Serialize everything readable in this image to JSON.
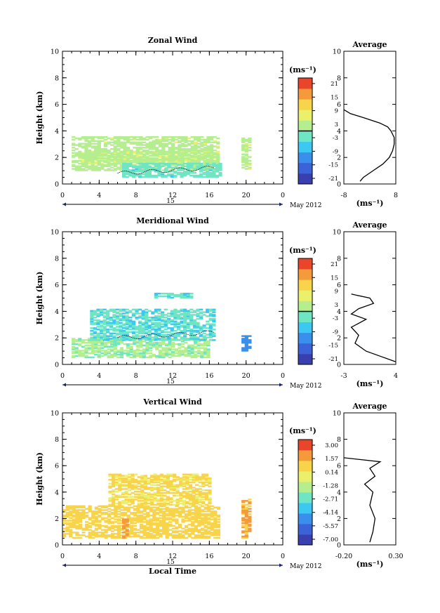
{
  "chart_data": [
    {
      "type": "heatmap",
      "title": "Zonal Wind",
      "ylabel": "Height (km)",
      "xlabel": "",
      "xlim": [
        0,
        24
      ],
      "ylim": [
        0,
        10
      ],
      "x_ticks": [
        "0",
        "4",
        "8",
        "12",
        "16",
        "20",
        "0"
      ],
      "y_ticks": [
        "0",
        "2",
        "4",
        "6",
        "8",
        "10"
      ],
      "date_axis": {
        "day_label": "15",
        "month_label": "May 2012"
      },
      "colorbar": {
        "unit_label": "(ms⁻¹)",
        "ticks": [
          "21",
          "15",
          "9",
          "3",
          "-3",
          "-9",
          "-15",
          "-21"
        ],
        "range": [
          -24,
          24
        ]
      },
      "approx_field": [
        {
          "t": [
            2,
            17
          ],
          "h": [
            1.5,
            2.5
          ],
          "value": 6
        },
        {
          "t": [
            1,
            17
          ],
          "h": [
            1.0,
            3.6
          ],
          "value": 3
        },
        {
          "t": [
            6.5,
            17
          ],
          "h": [
            0.5,
            1.6
          ],
          "value": -3
        },
        {
          "t": [
            19.5,
            20.5
          ],
          "h": [
            1.0,
            3.5
          ],
          "value": 3
        }
      ],
      "average_profile": {
        "title": "Average",
        "xlabel": "(ms⁻¹)",
        "x_ticks": [
          "-8",
          "8"
        ],
        "xlim": [
          -8,
          8
        ],
        "height": [
          0.2,
          0.5,
          1.0,
          1.5,
          2.0,
          2.5,
          3.0,
          3.5,
          4.0,
          4.3,
          4.6,
          5.0,
          5.3,
          5.6
        ],
        "value": [
          -3,
          -2,
          1,
          4,
          6,
          7,
          7.5,
          7.5,
          6.5,
          5.5,
          3,
          -2,
          -6,
          -8
        ]
      }
    },
    {
      "type": "heatmap",
      "title": "Meridional Wind",
      "ylabel": "Height (km)",
      "xlabel": "",
      "xlim": [
        0,
        24
      ],
      "ylim": [
        0,
        10
      ],
      "x_ticks": [
        "0",
        "4",
        "8",
        "12",
        "16",
        "20",
        "0"
      ],
      "y_ticks": [
        "0",
        "2",
        "4",
        "6",
        "8",
        "10"
      ],
      "date_axis": {
        "day_label": "15",
        "month_label": "May 2012"
      },
      "colorbar": {
        "unit_label": "(ms⁻¹)",
        "ticks": [
          "21",
          "15",
          "9",
          "3",
          "-3",
          "-9",
          "-15",
          "-21"
        ],
        "range": [
          -24,
          24
        ]
      },
      "approx_field": [
        {
          "t": [
            1,
            16
          ],
          "h": [
            0.5,
            2.0
          ],
          "value": 1
        },
        {
          "t": [
            3,
            16.5
          ],
          "h": [
            1.8,
            4.2
          ],
          "value": -4
        },
        {
          "t": [
            10,
            14
          ],
          "h": [
            5.0,
            5.3
          ],
          "value": -4
        },
        {
          "t": [
            19.5,
            20.5
          ],
          "h": [
            1.0,
            2.2
          ],
          "value": -12
        }
      ],
      "average_profile": {
        "title": "Average",
        "xlabel": "(ms⁻¹)",
        "x_ticks": [
          "-3",
          "4"
        ],
        "xlim": [
          -3,
          4
        ],
        "height": [
          0.2,
          0.6,
          1.0,
          1.6,
          2.2,
          2.8,
          3.4,
          3.8,
          4.2,
          4.6,
          5.0,
          5.3
        ],
        "value": [
          4,
          2,
          0,
          -1.5,
          -1,
          -2,
          0,
          -2,
          -1,
          1,
          0.5,
          -2
        ]
      }
    },
    {
      "type": "heatmap",
      "title": "Vertical Wind",
      "ylabel": "Height (km)",
      "xlabel": "Local Time",
      "xlim": [
        0,
        24
      ],
      "ylim": [
        0,
        10
      ],
      "x_ticks": [
        "0",
        "4",
        "8",
        "12",
        "16",
        "20",
        "0"
      ],
      "y_ticks": [
        "0",
        "2",
        "4",
        "6",
        "8",
        "10"
      ],
      "date_axis": {
        "day_label": "15",
        "month_label": "May 2012"
      },
      "colorbar": {
        "unit_label": "(ms⁻¹)",
        "ticks": [
          "3.00",
          "1.57",
          "0.14",
          "-1.28",
          "-2.71",
          "-4.14",
          "-5.57",
          "-7.00"
        ],
        "range": [
          -7.7,
          3.7
        ]
      },
      "approx_field": [
        {
          "t": [
            0,
            17
          ],
          "h": [
            0.5,
            3.0
          ],
          "value": 0.8
        },
        {
          "t": [
            5,
            16
          ],
          "h": [
            3.0,
            5.3
          ],
          "value": 0.5
        },
        {
          "t": [
            6.5,
            7
          ],
          "h": [
            0.5,
            2.0
          ],
          "value": 2.0
        },
        {
          "t": [
            19.5,
            20.5
          ],
          "h": [
            0.5,
            3.5
          ],
          "value": 1.6
        }
      ],
      "average_profile": {
        "title": "Average",
        "xlabel": "(ms⁻¹)",
        "x_ticks": [
          "-0.20",
          "0.30"
        ],
        "xlim": [
          -0.2,
          0.3
        ],
        "height": [
          0.2,
          1.0,
          2.0,
          3.0,
          4.0,
          4.6,
          5.2,
          5.8,
          6.3,
          6.6
        ],
        "value": [
          0.05,
          0.08,
          0.1,
          0.05,
          0.08,
          0.0,
          0.1,
          0.05,
          0.15,
          -0.2
        ]
      }
    }
  ],
  "colors": {
    "colormap": [
      "#3a3faf",
      "#3b62d6",
      "#3a8fec",
      "#3cc8f0",
      "#6ee6c4",
      "#b4ee8e",
      "#eaf06a",
      "#f8d44a",
      "#f59a3a",
      "#e8452a"
    ]
  }
}
